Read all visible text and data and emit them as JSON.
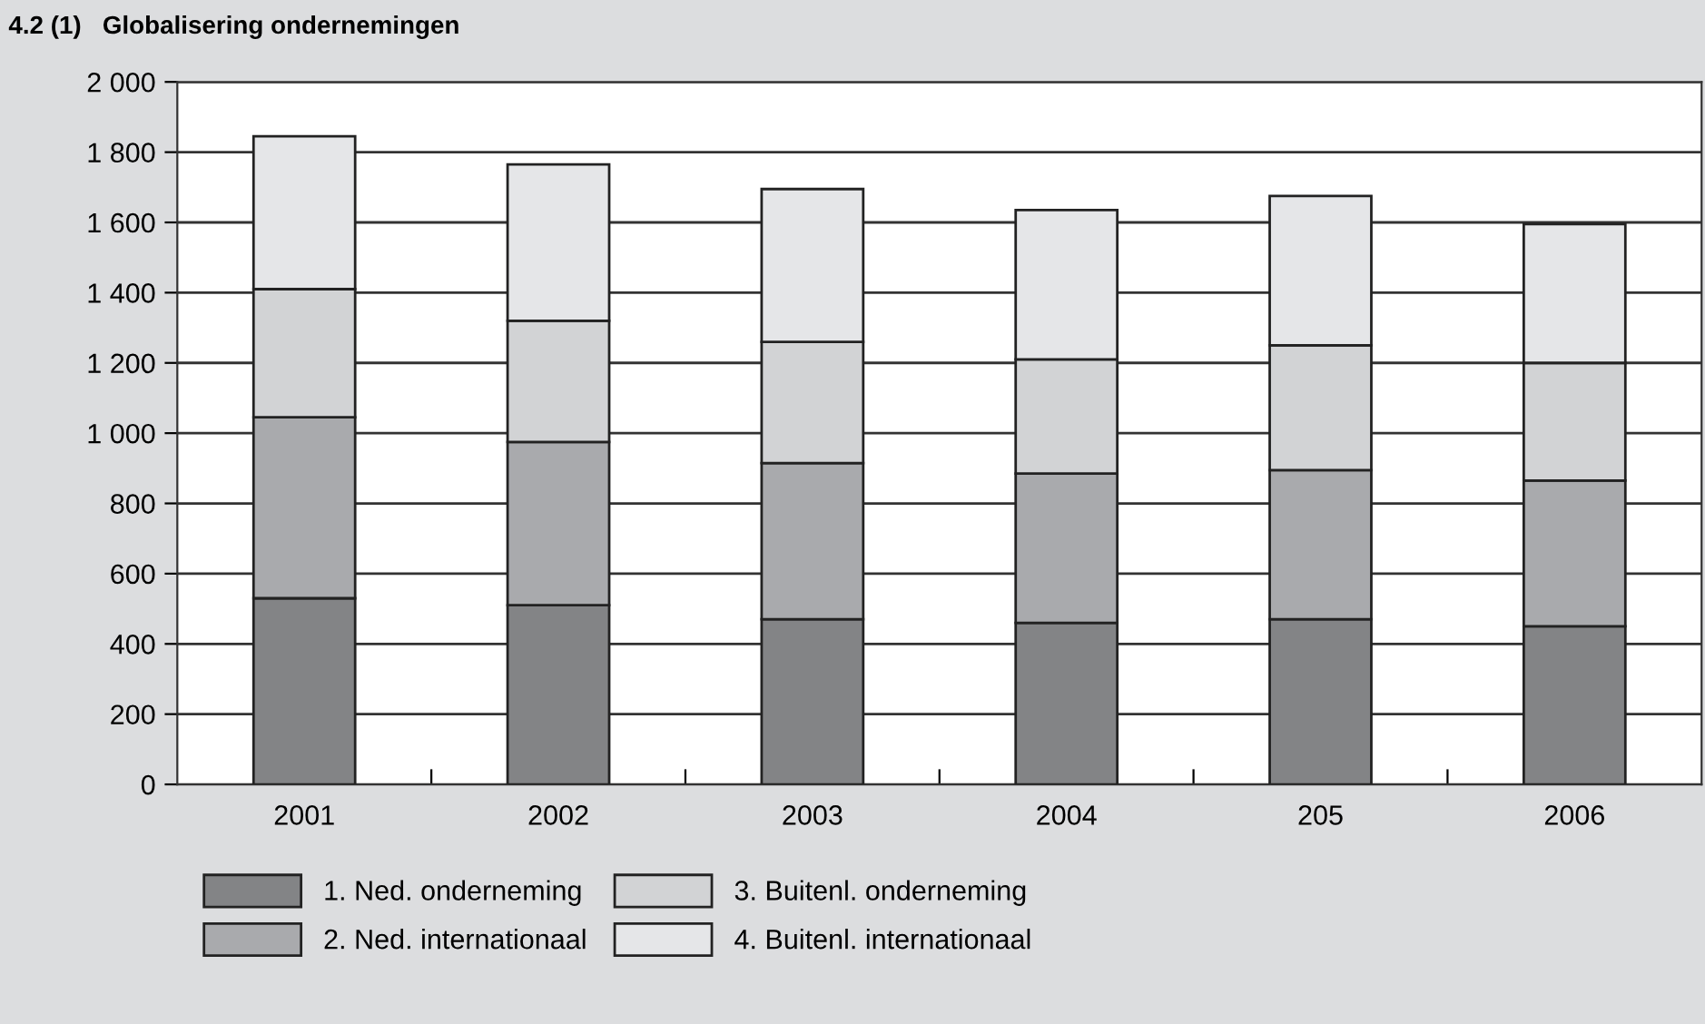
{
  "chart_data": {
    "type": "bar",
    "title": "4.2 (1)   Globalisering ondernemingen",
    "stacked": true,
    "categories": [
      "2001",
      "2002",
      "2003",
      "2004",
      "205",
      "2006"
    ],
    "series": [
      {
        "name": "1. Ned. onderneming",
        "color": "#838486",
        "values": [
          530,
          510,
          470,
          460,
          470,
          450
        ]
      },
      {
        "name": "2. Ned. internationaal",
        "color": "#a9aaad",
        "values": [
          515,
          465,
          445,
          425,
          425,
          415
        ]
      },
      {
        "name": "3. Buitenl. onderneming",
        "color": "#d2d3d5",
        "values": [
          365,
          345,
          345,
          325,
          355,
          335
        ]
      },
      {
        "name": "4. Buitenl. internationaal",
        "color": "#e5e6e8",
        "values": [
          435,
          445,
          435,
          425,
          425,
          395
        ]
      }
    ],
    "ylim": [
      0,
      2000
    ],
    "yticks": [
      0,
      200,
      400,
      600,
      800,
      {
        "value": 1000,
        "label": "1 000"
      },
      {
        "value": 1200,
        "label": "1 200"
      },
      {
        "value": 1400,
        "label": "1 400"
      },
      {
        "value": 1600,
        "label": "1 600"
      },
      {
        "value": 1800,
        "label": "1 800"
      },
      {
        "value": 2000,
        "label": "2 000"
      }
    ],
    "grid": "y",
    "legend": "bottom"
  }
}
